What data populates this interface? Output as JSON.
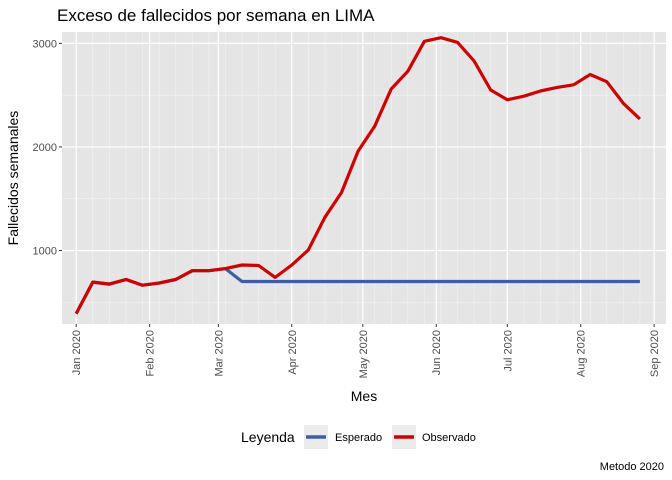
{
  "chart_data": {
    "type": "line",
    "title": "Exceso de fallecidos por semana en LIMA",
    "xlabel": "Mes",
    "ylabel": "Fallecidos semanales",
    "caption": "Metodo 2020",
    "legend_title": "Leyenda",
    "legend_position": "bottom",
    "grid": true,
    "ylim": [
      290,
      3110
    ],
    "xlim": [
      "2019-12-26",
      "2020-09-06"
    ],
    "y_ticks": [
      1000,
      2000,
      3000
    ],
    "x_ticks": [
      {
        "date": "2020-01-01",
        "label": "Jan 2020"
      },
      {
        "date": "2020-02-01",
        "label": "Feb 2020"
      },
      {
        "date": "2020-03-01",
        "label": "Mar 2020"
      },
      {
        "date": "2020-04-01",
        "label": "Apr 2020"
      },
      {
        "date": "2020-05-01",
        "label": "May 2020"
      },
      {
        "date": "2020-06-01",
        "label": "Jun 2020"
      },
      {
        "date": "2020-07-01",
        "label": "Jul 2020"
      },
      {
        "date": "2020-08-01",
        "label": "Aug 2020"
      },
      {
        "date": "2020-09-01",
        "label": "Sep 2020"
      }
    ],
    "x": [
      "2020-01-01",
      "2020-01-08",
      "2020-01-15",
      "2020-01-22",
      "2020-01-29",
      "2020-02-05",
      "2020-02-12",
      "2020-02-19",
      "2020-02-26",
      "2020-03-04",
      "2020-03-11",
      "2020-03-18",
      "2020-03-25",
      "2020-04-01",
      "2020-04-08",
      "2020-04-15",
      "2020-04-22",
      "2020-04-29",
      "2020-05-06",
      "2020-05-13",
      "2020-05-20",
      "2020-05-27",
      "2020-06-03",
      "2020-06-10",
      "2020-06-17",
      "2020-06-24",
      "2020-07-01",
      "2020-07-08",
      "2020-07-15",
      "2020-07-22",
      "2020-07-29",
      "2020-08-05",
      "2020-08-12",
      "2020-08-19",
      "2020-08-26"
    ],
    "series": [
      {
        "name": "Esperado",
        "color": "#3a5fa8",
        "values": [
          390,
          695,
          675,
          720,
          665,
          685,
          720,
          805,
          805,
          825,
          700,
          700,
          700,
          700,
          700,
          700,
          700,
          700,
          700,
          700,
          700,
          700,
          700,
          700,
          700,
          700,
          700,
          700,
          700,
          700,
          700,
          700,
          700,
          700,
          700
        ]
      },
      {
        "name": "Observado",
        "color": "#cc0000",
        "values": [
          390,
          695,
          675,
          720,
          665,
          685,
          720,
          805,
          805,
          825,
          860,
          855,
          740,
          860,
          1005,
          1320,
          1560,
          1960,
          2200,
          2560,
          2730,
          3020,
          3055,
          3010,
          2830,
          2550,
          2455,
          2490,
          2540,
          2575,
          2600,
          2700,
          2630,
          2420,
          2270
        ]
      }
    ]
  }
}
